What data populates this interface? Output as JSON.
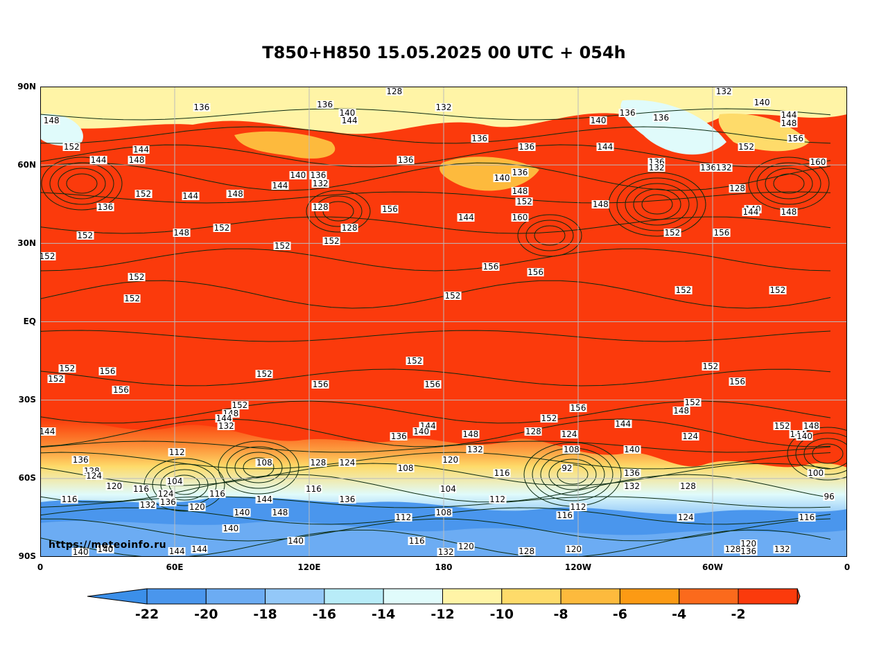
{
  "title": "T850+H850 15.05.2025 00 UTC + 054h",
  "watermark": "https://meteoinfo.ru",
  "y_axis": [
    "90N",
    "60N",
    "30N",
    "EQ",
    "30S",
    "60S",
    "90S"
  ],
  "x_axis": [
    "0",
    "60E",
    "120E",
    "180",
    "120W",
    "60W",
    "0"
  ],
  "colorbar": {
    "labels": [
      "-22",
      "-20",
      "-18",
      "-16",
      "-14",
      "-12",
      "-10",
      "-8",
      "-6",
      "-4",
      "-2"
    ],
    "colors": [
      "#3b8fe9",
      "#4a96ed",
      "#6cacf3",
      "#93c8f8",
      "#b8ecf8",
      "#e0fbfb",
      "#fff4a6",
      "#fedb6a",
      "#fdba3d",
      "#fc9a14",
      "#fb6a1c",
      "#fb3a0c"
    ],
    "below_color": "#3b8fe9",
    "above_color": "#fb3a0c"
  },
  "contour_labels": [
    {
      "text": "128",
      "lon": 158,
      "lat": 89
    },
    {
      "text": "132",
      "lon": 305,
      "lat": 89
    },
    {
      "text": "136",
      "lon": 72,
      "lat": 82
    },
    {
      "text": "136",
      "lon": 127,
      "lat": 83
    },
    {
      "text": "140",
      "lon": 137,
      "lat": 80
    },
    {
      "text": "144",
      "lon": 138,
      "lat": 77
    },
    {
      "text": "132",
      "lon": 180,
      "lat": 82
    },
    {
      "text": "148",
      "lon": 5,
      "lat": 77
    },
    {
      "text": "136",
      "lon": 196,
      "lat": 70
    },
    {
      "text": "136",
      "lon": 217,
      "lat": 67
    },
    {
      "text": "140",
      "lon": 249,
      "lat": 77
    },
    {
      "text": "136",
      "lon": 262,
      "lat": 80
    },
    {
      "text": "136",
      "lon": 277,
      "lat": 78
    },
    {
      "text": "144",
      "lon": 252,
      "lat": 67
    },
    {
      "text": "140",
      "lon": 322,
      "lat": 84
    },
    {
      "text": "144",
      "lon": 334,
      "lat": 79
    },
    {
      "text": "148",
      "lon": 334,
      "lat": 76
    },
    {
      "text": "156",
      "lon": 337,
      "lat": 70
    },
    {
      "text": "152",
      "lon": 315,
      "lat": 67
    },
    {
      "text": "152",
      "lon": 14,
      "lat": 67
    },
    {
      "text": "144",
      "lon": 26,
      "lat": 62
    },
    {
      "text": "144",
      "lon": 45,
      "lat": 66
    },
    {
      "text": "148",
      "lon": 43,
      "lat": 62
    },
    {
      "text": "136",
      "lon": 163,
      "lat": 62
    },
    {
      "text": "136",
      "lon": 275,
      "lat": 61
    },
    {
      "text": "132",
      "lon": 275,
      "lat": 59
    },
    {
      "text": "136",
      "lon": 298,
      "lat": 59
    },
    {
      "text": "132",
      "lon": 305,
      "lat": 59
    },
    {
      "text": "160",
      "lon": 347,
      "lat": 61
    },
    {
      "text": "140",
      "lon": 115,
      "lat": 56
    },
    {
      "text": "136",
      "lon": 124,
      "lat": 56
    },
    {
      "text": "132",
      "lon": 125,
      "lat": 53
    },
    {
      "text": "144",
      "lon": 107,
      "lat": 52
    },
    {
      "text": "136",
      "lon": 214,
      "lat": 57
    },
    {
      "text": "140",
      "lon": 206,
      "lat": 55
    },
    {
      "text": "148",
      "lon": 214,
      "lat": 50
    },
    {
      "text": "152",
      "lon": 216,
      "lat": 46
    },
    {
      "text": "128",
      "lon": 311,
      "lat": 51
    },
    {
      "text": "152",
      "lon": 46,
      "lat": 49
    },
    {
      "text": "144",
      "lon": 67,
      "lat": 48
    },
    {
      "text": "148",
      "lon": 87,
      "lat": 49
    },
    {
      "text": "136",
      "lon": 29,
      "lat": 44
    },
    {
      "text": "148",
      "lon": 250,
      "lat": 45
    },
    {
      "text": "128",
      "lon": 125,
      "lat": 44
    },
    {
      "text": "156",
      "lon": 156,
      "lat": 43
    },
    {
      "text": "144",
      "lon": 190,
      "lat": 40
    },
    {
      "text": "160",
      "lon": 214,
      "lat": 40
    },
    {
      "text": "140",
      "lon": 318,
      "lat": 43
    },
    {
      "text": "144",
      "lon": 317,
      "lat": 42
    },
    {
      "text": "148",
      "lon": 334,
      "lat": 42
    },
    {
      "text": "152",
      "lon": 81,
      "lat": 36
    },
    {
      "text": "148",
      "lon": 63,
      "lat": 34
    },
    {
      "text": "128",
      "lon": 138,
      "lat": 36
    },
    {
      "text": "152",
      "lon": 20,
      "lat": 33
    },
    {
      "text": "152",
      "lon": 108,
      "lat": 29
    },
    {
      "text": "152",
      "lon": 130,
      "lat": 31
    },
    {
      "text": "152",
      "lon": 282,
      "lat": 34
    },
    {
      "text": "156",
      "lon": 304,
      "lat": 34
    },
    {
      "text": "152",
      "lon": 1,
      "lat": 25
    },
    {
      "text": "156",
      "lon": 201,
      "lat": 21
    },
    {
      "text": "156",
      "lon": 221,
      "lat": 19
    },
    {
      "text": "152",
      "lon": 43,
      "lat": 17
    },
    {
      "text": "152",
      "lon": 41,
      "lat": 9
    },
    {
      "text": "152",
      "lon": 184,
      "lat": 10
    },
    {
      "text": "152",
      "lon": 287,
      "lat": 12
    },
    {
      "text": "152",
      "lon": 329,
      "lat": 12
    },
    {
      "text": "152",
      "lon": 12,
      "lat": -18
    },
    {
      "text": "156",
      "lon": 30,
      "lat": -19
    },
    {
      "text": "152",
      "lon": 7,
      "lat": -22
    },
    {
      "text": "152",
      "lon": 167,
      "lat": -15
    },
    {
      "text": "152",
      "lon": 100,
      "lat": -20
    },
    {
      "text": "156",
      "lon": 125,
      "lat": -24
    },
    {
      "text": "156",
      "lon": 175,
      "lat": -24
    },
    {
      "text": "156",
      "lon": 36,
      "lat": -26
    },
    {
      "text": "156",
      "lon": 311,
      "lat": -23
    },
    {
      "text": "152",
      "lon": 299,
      "lat": -17
    },
    {
      "text": "152",
      "lon": 89,
      "lat": -32
    },
    {
      "text": "148",
      "lon": 85,
      "lat": -35
    },
    {
      "text": "144",
      "lon": 82,
      "lat": -37
    },
    {
      "text": "132",
      "lon": 83,
      "lat": -40
    },
    {
      "text": "156",
      "lon": 240,
      "lat": -33
    },
    {
      "text": "152",
      "lon": 227,
      "lat": -37
    },
    {
      "text": "148",
      "lon": 286,
      "lat": -34
    },
    {
      "text": "152",
      "lon": 291,
      "lat": -31
    },
    {
      "text": "144",
      "lon": 260,
      "lat": -39
    },
    {
      "text": "144",
      "lon": 173,
      "lat": -40
    },
    {
      "text": "140",
      "lon": 170,
      "lat": -42
    },
    {
      "text": "136",
      "lon": 160,
      "lat": -44
    },
    {
      "text": "148",
      "lon": 192,
      "lat": -43
    },
    {
      "text": "128",
      "lon": 220,
      "lat": -42
    },
    {
      "text": "124",
      "lon": 236,
      "lat": -43
    },
    {
      "text": "132",
      "lon": 194,
      "lat": -49
    },
    {
      "text": "108",
      "lon": 237,
      "lat": -49
    },
    {
      "text": "124",
      "lon": 290,
      "lat": -44
    },
    {
      "text": "152",
      "lon": 331,
      "lat": -40
    },
    {
      "text": "148",
      "lon": 344,
      "lat": -40
    },
    {
      "text": "144",
      "lon": 338,
      "lat": -43
    },
    {
      "text": "140",
      "lon": 341,
      "lat": -44
    },
    {
      "text": "144",
      "lon": 0,
      "lat": -42
    },
    {
      "text": "140",
      "lon": 264,
      "lat": -49
    },
    {
      "text": "136",
      "lon": 18,
      "lat": -53
    },
    {
      "text": "128",
      "lon": 23,
      "lat": -57
    },
    {
      "text": "124",
      "lon": 24,
      "lat": -59
    },
    {
      "text": "112",
      "lon": 61,
      "lat": -50
    },
    {
      "text": "108",
      "lon": 100,
      "lat": -54
    },
    {
      "text": "128",
      "lon": 124,
      "lat": -54
    },
    {
      "text": "124",
      "lon": 137,
      "lat": -54
    },
    {
      "text": "108",
      "lon": 163,
      "lat": -56
    },
    {
      "text": "120",
      "lon": 183,
      "lat": -53
    },
    {
      "text": "92",
      "lon": 235,
      "lat": -56
    },
    {
      "text": "116",
      "lon": 206,
      "lat": -58
    },
    {
      "text": "136",
      "lon": 264,
      "lat": -58
    },
    {
      "text": "132",
      "lon": 264,
      "lat": -63
    },
    {
      "text": "100",
      "lon": 346,
      "lat": -58
    },
    {
      "text": "96",
      "lon": 352,
      "lat": -67
    },
    {
      "text": "104",
      "lon": 60,
      "lat": -61
    },
    {
      "text": "120",
      "lon": 33,
      "lat": -63
    },
    {
      "text": "116",
      "lon": 45,
      "lat": -64
    },
    {
      "text": "124",
      "lon": 56,
      "lat": -66
    },
    {
      "text": "116",
      "lon": 79,
      "lat": -66
    },
    {
      "text": "136",
      "lon": 57,
      "lat": -69
    },
    {
      "text": "132",
      "lon": 48,
      "lat": -70
    },
    {
      "text": "120",
      "lon": 70,
      "lat": -71
    },
    {
      "text": "116",
      "lon": 13,
      "lat": -68
    },
    {
      "text": "116",
      "lon": 122,
      "lat": -64
    },
    {
      "text": "104",
      "lon": 182,
      "lat": -64
    },
    {
      "text": "112",
      "lon": 204,
      "lat": -68
    },
    {
      "text": "128",
      "lon": 289,
      "lat": -63
    },
    {
      "text": "144",
      "lon": 100,
      "lat": -68
    },
    {
      "text": "136",
      "lon": 137,
      "lat": -68
    },
    {
      "text": "140",
      "lon": 90,
      "lat": -73
    },
    {
      "text": "148",
      "lon": 107,
      "lat": -73
    },
    {
      "text": "140",
      "lon": 85,
      "lat": -79
    },
    {
      "text": "140",
      "lon": 114,
      "lat": -84
    },
    {
      "text": "112",
      "lon": 162,
      "lat": -75
    },
    {
      "text": "108",
      "lon": 180,
      "lat": -73
    },
    {
      "text": "116",
      "lon": 234,
      "lat": -74
    },
    {
      "text": "112",
      "lon": 240,
      "lat": -71
    },
    {
      "text": "124",
      "lon": 288,
      "lat": -75
    },
    {
      "text": "116",
      "lon": 342,
      "lat": -75
    },
    {
      "text": "116",
      "lon": 168,
      "lat": -84
    },
    {
      "text": "120",
      "lon": 190,
      "lat": -86
    },
    {
      "text": "132",
      "lon": 181,
      "lat": -89
    },
    {
      "text": "128",
      "lon": 217,
      "lat": -88
    },
    {
      "text": "120",
      "lon": 238,
      "lat": -87
    },
    {
      "text": "128",
      "lon": 309,
      "lat": -87
    },
    {
      "text": "120",
      "lon": 316,
      "lat": -85
    },
    {
      "text": "136",
      "lon": 316,
      "lat": -88
    },
    {
      "text": "132",
      "lon": 331,
      "lat": -87
    },
    {
      "text": "144",
      "lon": 61,
      "lat": -88
    },
    {
      "text": "144",
      "lon": 71,
      "lat": -87
    },
    {
      "text": "140",
      "lon": 18,
      "lat": -89
    },
    {
      "text": "140",
      "lon": 29,
      "lat": -87
    }
  ]
}
